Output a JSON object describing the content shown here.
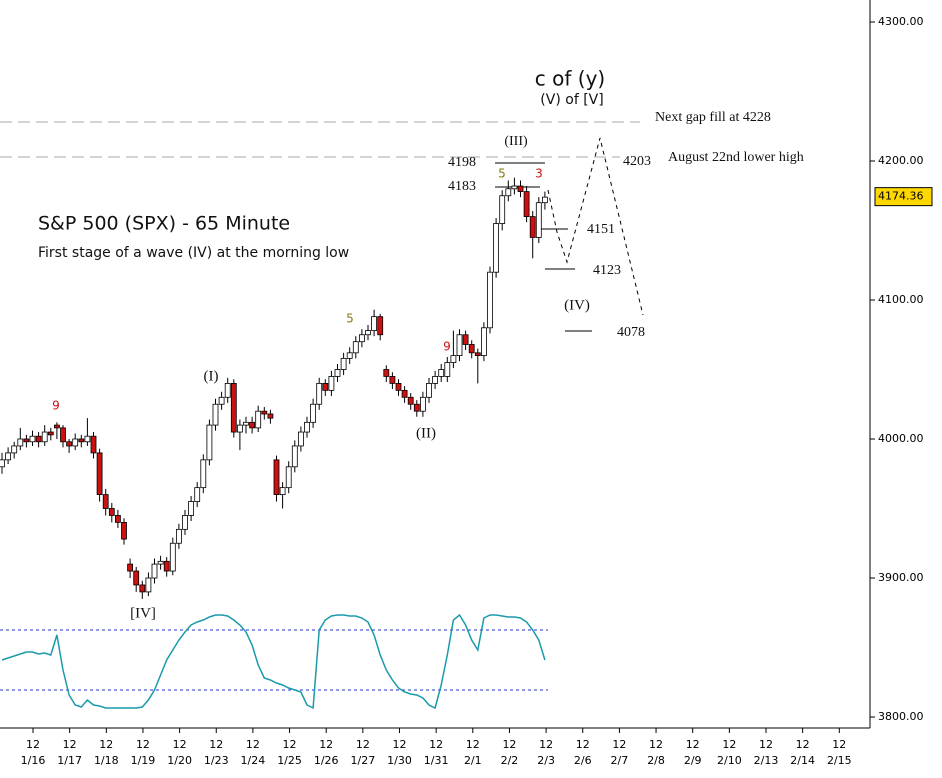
{
  "chart_data": {
    "type": "candlestick",
    "annotations": [
      "c of (y)",
      "(V) of [V]",
      "Next gap fill at 4228",
      "4203",
      "August 22nd lower high",
      "4198",
      "4183",
      "5",
      "3",
      "(III)",
      "S&P 500 (SPX) - 65 Minute",
      "First stage of a wave (IV) at the morning low",
      "4151",
      "4123",
      "(IV)",
      "4078",
      "9",
      "5",
      "9",
      "(I)",
      "(II)",
      "[IV]"
    ],
    "ylim": [
      3800,
      4300
    ],
    "yticks": [
      {
        "value": 3800,
        "label": "3800.00"
      },
      {
        "value": 3900,
        "label": "3900.00"
      },
      {
        "value": 4000,
        "label": "4000.00"
      },
      {
        "value": 4100,
        "label": "4100.00"
      },
      {
        "value": 4200,
        "label": "4200.00"
      },
      {
        "value": 4300,
        "label": "4300.00"
      }
    ],
    "last_price": {
      "value": 4174.36,
      "label": "4174.36"
    },
    "categories": [
      "1/16",
      "1/17",
      "1/18",
      "1/19",
      "1/20",
      "1/23",
      "1/24",
      "1/25",
      "1/26",
      "1/27",
      "1/30",
      "1/31",
      "2/1",
      "2/2",
      "2/3",
      "2/6",
      "2/7",
      "2/8",
      "2/9",
      "2/10",
      "2/13",
      "2/14",
      "2/15"
    ],
    "hour_labels": [
      "12",
      "12",
      "12",
      "12",
      "12",
      "12",
      "12",
      "12",
      "12",
      "12",
      "12",
      "12",
      "12",
      "12",
      "12",
      "12",
      "12",
      "12",
      "12",
      "12",
      "12",
      "12",
      "12"
    ],
    "up_color": "#ffffff",
    "down_color": "#cc1111",
    "ohlc": [
      [
        3980,
        3990,
        3975,
        3985
      ],
      [
        3985,
        3994,
        3982,
        3990
      ],
      [
        3990,
        3998,
        3986,
        3995
      ],
      [
        3995,
        4008,
        3992,
        4000
      ],
      [
        4000,
        4003,
        3994,
        3998
      ],
      [
        3998,
        4006,
        3995,
        4002
      ],
      [
        4002,
        4005,
        3994,
        3998
      ],
      [
        3998,
        4010,
        3995,
        4005
      ],
      [
        4005,
        4008,
        3999,
        4003
      ],
      [
        4010,
        4012,
        4000,
        4008
      ],
      [
        4008,
        4010,
        3994,
        3998
      ],
      [
        3998,
        4000,
        3990,
        3995
      ],
      [
        3995,
        4004,
        3992,
        4000
      ],
      [
        4000,
        4003,
        3994,
        3998
      ],
      [
        3998,
        4015,
        3995,
        4002
      ],
      [
        4002,
        4005,
        3986,
        3990
      ],
      [
        3990,
        3993,
        3955,
        3960
      ],
      [
        3960,
        3964,
        3945,
        3950
      ],
      [
        3950,
        3954,
        3940,
        3945
      ],
      [
        3945,
        3949,
        3936,
        3940
      ],
      [
        3940,
        3943,
        3924,
        3928
      ],
      [
        3910,
        3914,
        3900,
        3905
      ],
      [
        3905,
        3908,
        3890,
        3895
      ],
      [
        3895,
        3898,
        3885,
        3890
      ],
      [
        3890,
        3904,
        3887,
        3900
      ],
      [
        3900,
        3914,
        3896,
        3910
      ],
      [
        3910,
        3916,
        3906,
        3912
      ],
      [
        3912,
        3915,
        3901,
        3905
      ],
      [
        3905,
        3929,
        3902,
        3925
      ],
      [
        3925,
        3939,
        3921,
        3935
      ],
      [
        3935,
        3949,
        3931,
        3945
      ],
      [
        3945,
        3959,
        3941,
        3955
      ],
      [
        3955,
        3969,
        3951,
        3965
      ],
      [
        3965,
        3989,
        3961,
        3985
      ],
      [
        3985,
        4014,
        3981,
        4010
      ],
      [
        4010,
        4029,
        4006,
        4025
      ],
      [
        4025,
        4034,
        4021,
        4030
      ],
      [
        4030,
        4044,
        4026,
        4040
      ],
      [
        4040,
        4043,
        4001,
        4005
      ],
      [
        4005,
        4014,
        3992,
        4010
      ],
      [
        4010,
        4016,
        4004,
        4012
      ],
      [
        4012,
        4016,
        4004,
        4008
      ],
      [
        4008,
        4024,
        4005,
        4020
      ],
      [
        4020,
        4023,
        4014,
        4018
      ],
      [
        4018,
        4021,
        4011,
        4015
      ],
      [
        3985,
        3988,
        3955,
        3960
      ],
      [
        3960,
        3969,
        3950,
        3965
      ],
      [
        3965,
        3984,
        3961,
        3980
      ],
      [
        3980,
        3999,
        3976,
        3995
      ],
      [
        3995,
        4009,
        3991,
        4005
      ],
      [
        4005,
        4016,
        4001,
        4012
      ],
      [
        4012,
        4029,
        4008,
        4025
      ],
      [
        4025,
        4044,
        4021,
        4040
      ],
      [
        4040,
        4043,
        4031,
        4035
      ],
      [
        4035,
        4049,
        4031,
        4045
      ],
      [
        4045,
        4054,
        4041,
        4050
      ],
      [
        4050,
        4062,
        4046,
        4058
      ],
      [
        4058,
        4066,
        4054,
        4062
      ],
      [
        4062,
        4074,
        4058,
        4070
      ],
      [
        4070,
        4079,
        4066,
        4075
      ],
      [
        4075,
        4082,
        4071,
        4078
      ],
      [
        4078,
        4093,
        4074,
        4088
      ],
      [
        4088,
        4090,
        4071,
        4075
      ],
      [
        4050,
        4053,
        4041,
        4045
      ],
      [
        4045,
        4048,
        4036,
        4040
      ],
      [
        4040,
        4043,
        4031,
        4035
      ],
      [
        4035,
        4038,
        4026,
        4030
      ],
      [
        4030,
        4033,
        4021,
        4025
      ],
      [
        4025,
        4028,
        4016,
        4020
      ],
      [
        4020,
        4034,
        4016,
        4030
      ],
      [
        4030,
        4044,
        4026,
        4040
      ],
      [
        4040,
        4049,
        4036,
        4045
      ],
      [
        4045,
        4054,
        4041,
        4050
      ],
      [
        4045,
        4059,
        4041,
        4055
      ],
      [
        4055,
        4078,
        4051,
        4060
      ],
      [
        4060,
        4079,
        4056,
        4075
      ],
      [
        4075,
        4078,
        4064,
        4068
      ],
      [
        4068,
        4071,
        4058,
        4062
      ],
      [
        4062,
        4065,
        4040,
        4060
      ],
      [
        4060,
        4084,
        4056,
        4080
      ],
      [
        4080,
        4124,
        4076,
        4120
      ],
      [
        4120,
        4159,
        4116,
        4155
      ],
      [
        4155,
        4179,
        4150,
        4175
      ],
      [
        4175,
        4186,
        4171,
        4180
      ],
      [
        4180,
        4188,
        4176,
        4182
      ],
      [
        4182,
        4186,
        4174,
        4178
      ],
      [
        4178,
        4182,
        4156,
        4160
      ],
      [
        4160,
        4164,
        4130,
        4145
      ],
      [
        4145,
        4174,
        4141,
        4170
      ],
      [
        4170,
        4178,
        4165,
        4174
      ]
    ],
    "oscillator": {
      "color": "#1a9aaa",
      "level_color": "#2233cc",
      "ylim": [
        0,
        100
      ],
      "levels": [
        80,
        20
      ],
      "values": [
        50,
        52,
        54,
        56,
        58,
        58,
        56,
        57,
        55,
        75,
        40,
        15,
        5,
        3,
        10,
        5,
        4,
        2,
        2,
        2,
        2,
        2,
        2,
        3,
        10,
        20,
        35,
        50,
        60,
        70,
        78,
        85,
        88,
        90,
        93,
        95,
        95,
        94,
        90,
        85,
        78,
        65,
        45,
        32,
        30,
        27,
        25,
        22,
        20,
        18,
        5,
        2,
        80,
        90,
        94,
        95,
        95,
        94,
        94,
        92,
        88,
        75,
        55,
        40,
        30,
        22,
        18,
        16,
        15,
        12,
        5,
        2,
        25,
        55,
        90,
        95,
        85,
        70,
        60,
        92,
        95,
        95,
        94,
        93,
        93,
        92,
        88,
        80,
        70,
        50
      ]
    }
  }
}
